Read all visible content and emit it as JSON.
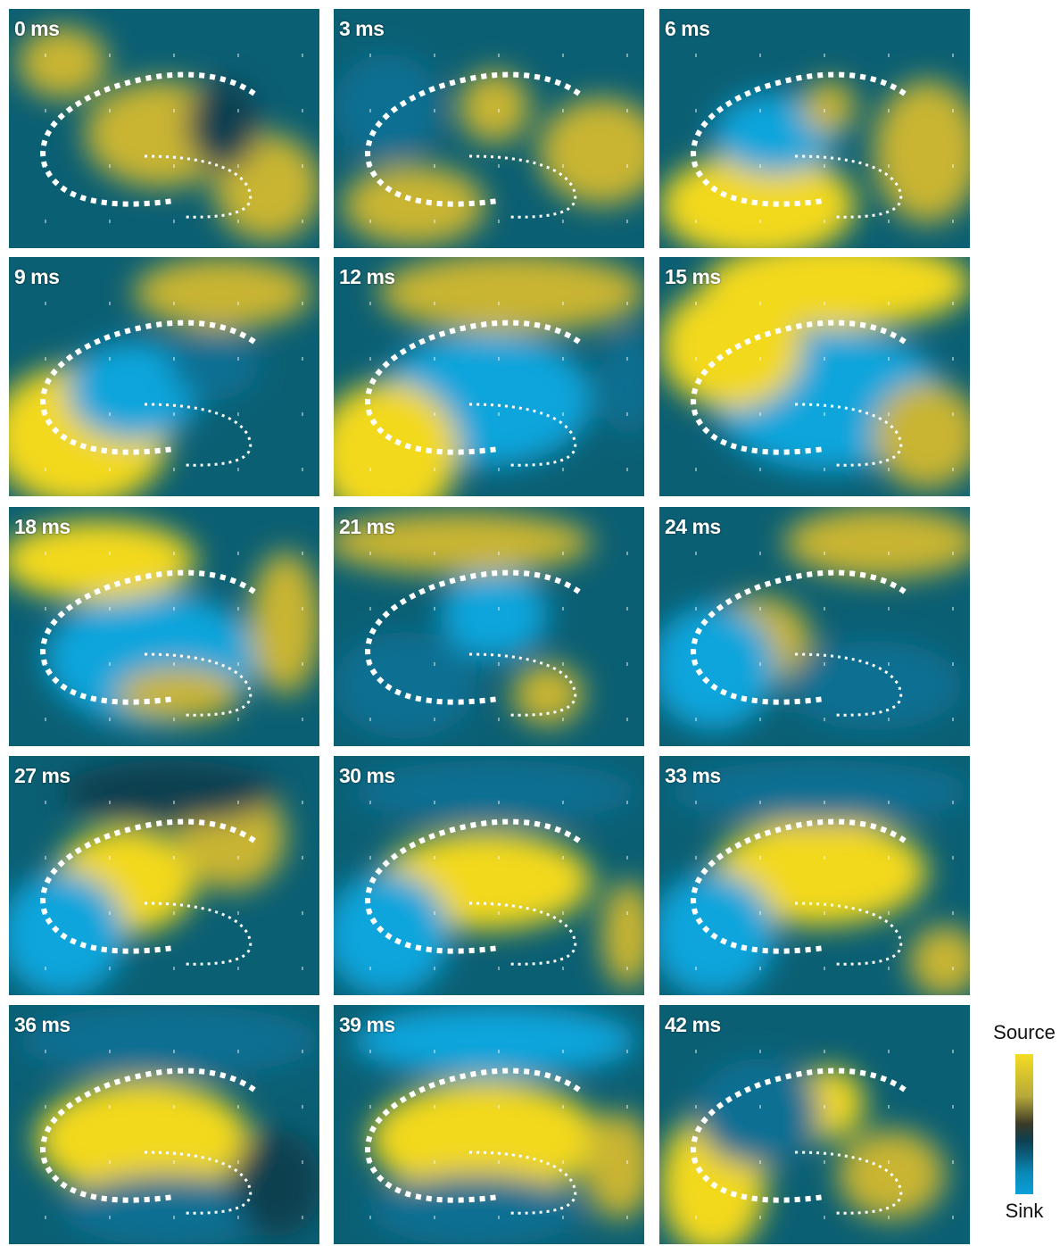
{
  "panels": [
    {
      "label": "0 ms"
    },
    {
      "label": "3 ms"
    },
    {
      "label": "6 ms"
    },
    {
      "label": "9 ms"
    },
    {
      "label": "12 ms"
    },
    {
      "label": "15 ms"
    },
    {
      "label": "18 ms"
    },
    {
      "label": "21 ms"
    },
    {
      "label": "24 ms"
    },
    {
      "label": "27 ms"
    },
    {
      "label": "30 ms"
    },
    {
      "label": "33 ms"
    },
    {
      "label": "36 ms"
    },
    {
      "label": "39 ms"
    },
    {
      "label": "42 ms"
    }
  ],
  "legend": {
    "top_label": "Source",
    "bottom_label": "Sink",
    "colors": {
      "source": "#f5dd22",
      "neutral": "#3a3a28",
      "sink": "#0aa0d8"
    }
  }
}
